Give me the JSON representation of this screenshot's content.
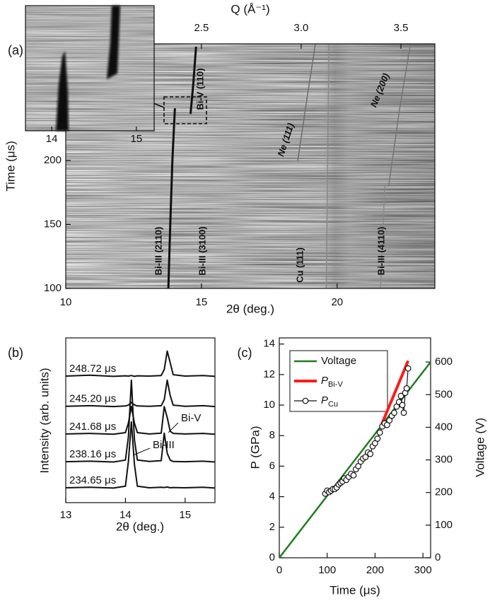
{
  "chart_data": [
    {
      "type": "heatmap",
      "panel_label": "(a)",
      "xlabel": "2θ (deg.)",
      "ylabel": "Time (μs)",
      "x2label": "Q (Å⁻¹)",
      "xlim": [
        10,
        23.6
      ],
      "xticks": [
        10,
        15,
        20
      ],
      "ylim": [
        100,
        291
      ],
      "yticks": [
        100,
        150,
        200
      ],
      "x2lim": [
        1.82,
        3.67
      ],
      "x2ticks": [
        2.5,
        {
          "value": 3,
          "label": "3.0"
        },
        3.5
      ],
      "series": [
        {
          "color": "#111111",
          "x": [
            13.78,
            13.85,
            13.93,
            14.02
          ],
          "values": [
            100,
            150,
            200,
            240
          ]
        },
        {
          "color": "#111111",
          "x": [
            14.6,
            14.7,
            14.8
          ],
          "values": [
            237,
            260,
            288
          ]
        },
        {
          "color": "#6f6f6f",
          "x": [
            18.55,
            18.9,
            19.2
          ],
          "values": [
            200,
            250,
            291
          ]
        },
        {
          "color": "#8a8a8a",
          "x": [
            19.6,
            19.65,
            19.7
          ],
          "values": [
            100,
            200,
            291
          ]
        },
        {
          "color": "#777777",
          "x": [
            21.9,
            22.3,
            22.7
          ],
          "values": [
            180,
            240,
            291
          ]
        },
        {
          "color": "#8a8a8a",
          "x": [
            21.6,
            21.75
          ],
          "values": [
            100,
            180
          ]
        }
      ],
      "annotations": [
        {
          "text": "Bi-III (2110)",
          "color": "#1f1fd0"
        },
        {
          "text": "Bi-III (3100)",
          "color": "#1f1fd0"
        },
        {
          "text": "Cu (111)",
          "color": "#8b1414"
        },
        {
          "text": "Bi-III (4110)",
          "color": "#1f1fd0"
        },
        {
          "text": "Bi-V (110)",
          "color": "#1f1fd0"
        },
        {
          "text": "Ne (111)",
          "color": "#1f1fd0"
        },
        {
          "text": "Ne (200)",
          "color": "#1f1fd0"
        }
      ],
      "inset": {
        "xlim": [
          13.69,
          15.21
        ],
        "xticks": [
          14,
          15
        ]
      }
    },
    {
      "type": "line",
      "panel_label": "(b)",
      "xlabel": "2θ (deg.)",
      "ylabel": "Intensity (arb. units)",
      "xlim": [
        13,
        15.5
      ],
      "xticks": [
        13,
        14,
        15
      ],
      "ylim": [
        0,
        6
      ],
      "x": [
        13.0,
        13.4,
        13.8,
        14.0,
        14.05,
        14.1,
        14.15,
        14.2,
        14.4,
        14.6,
        14.65,
        14.7,
        14.75,
        14.8,
        15.0,
        15.3,
        15.5
      ],
      "series": [
        {
          "name": "248.72 μs",
          "color": "#111111",
          "values": [
            4.61,
            4.64,
            4.6,
            4.62,
            4.61,
            4.63,
            4.6,
            4.62,
            4.61,
            4.63,
            4.85,
            5.52,
            5.1,
            4.66,
            4.61,
            4.63,
            4.6
          ]
        },
        {
          "name": "245.20 μs",
          "color": "#111111",
          "values": [
            3.51,
            3.53,
            3.5,
            3.52,
            3.55,
            3.65,
            3.56,
            3.52,
            3.51,
            3.53,
            3.75,
            4.46,
            3.9,
            3.55,
            3.51,
            3.53,
            3.5
          ]
        },
        {
          "name": "241.68 μs",
          "color": "#111111",
          "values": [
            2.5,
            2.52,
            2.49,
            2.55,
            2.9,
            3.5,
            2.9,
            2.55,
            2.5,
            2.53,
            3.5,
            3.1,
            2.6,
            2.52,
            2.5,
            2.52,
            2.49
          ]
        },
        {
          "name": "238.16 μs",
          "color": "#111111",
          "values": [
            1.49,
            1.51,
            1.48,
            1.55,
            2.4,
            4.46,
            2.3,
            1.55,
            1.5,
            1.53,
            2.53,
            1.8,
            1.55,
            1.5,
            1.49,
            1.51,
            1.48
          ]
        },
        {
          "name": "234.65 μs",
          "color": "#111111",
          "values": [
            0.54,
            0.56,
            0.53,
            0.6,
            1.5,
            2.94,
            1.4,
            0.6,
            0.54,
            0.56,
            0.55,
            0.57,
            0.54,
            0.55,
            0.54,
            0.56,
            0.53
          ]
        }
      ],
      "annotations": [
        "Bi-V",
        "Bi-III"
      ]
    },
    {
      "type": "line",
      "panel_label": "(c)",
      "xlabel": "Time (μs)",
      "ylabel": "P (GPa)",
      "y2label": "Voltage (V)",
      "xlim": [
        0,
        316
      ],
      "xticks": [
        0,
        100,
        200,
        300
      ],
      "ylim": [
        0,
        14.4
      ],
      "yticks": [
        0,
        2,
        4,
        6,
        8,
        10,
        12,
        14
      ],
      "y2lim": [
        0,
        674
      ],
      "y2ticks": [
        0,
        100,
        200,
        300,
        400,
        500,
        600
      ],
      "legend": "upper left",
      "series": [
        {
          "name": "Voltage",
          "color": "#1e7d1e",
          "axis": "y2",
          "x": [
            0,
            316
          ],
          "values": [
            0,
            600
          ]
        },
        {
          "name": "P",
          "subscript": "Bi-V",
          "color": "#ff1a1a",
          "x": [
            214,
            269
          ],
          "values": [
            8.75,
            12.9
          ]
        },
        {
          "name": "P",
          "subscript": "Cu",
          "color": "#111111",
          "marker": "circle",
          "x": [
            96,
            100,
            104,
            108,
            112,
            116,
            120,
            124,
            128,
            132,
            136,
            140,
            145,
            150,
            155,
            160,
            165,
            170,
            175,
            180,
            185,
            190,
            195,
            200,
            205,
            210,
            215,
            220,
            225,
            230,
            235,
            240,
            245,
            250,
            254,
            257,
            260,
            263,
            266,
            269
          ],
          "values": [
            4.2,
            4.4,
            4.3,
            4.4,
            4.5,
            4.5,
            4.6,
            4.8,
            4.9,
            5.0,
            5.2,
            5.1,
            5.3,
            5.5,
            5.4,
            5.8,
            6.0,
            6.3,
            6.5,
            6.6,
            6.9,
            6.8,
            7.3,
            7.5,
            7.8,
            8.2,
            8.6,
            8.8,
            8.7,
            9.0,
            9.3,
            9.5,
            9.9,
            10.2,
            10.6,
            10.0,
            9.5,
            10.8,
            11.1,
            12.4
          ]
        }
      ]
    }
  ]
}
